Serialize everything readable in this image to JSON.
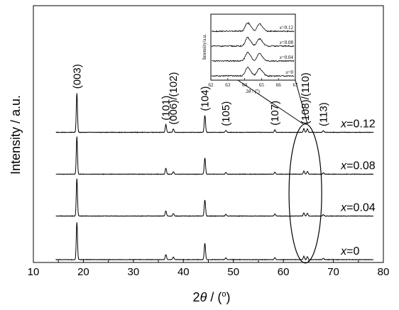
{
  "chart_data": [
    {
      "type": "line",
      "xlabel_prefix": "2",
      "xlabel_symbol": "θ",
      "xlabel_suffix": " / (",
      "xlabel_unit_sup": "o",
      "xlabel_close": ")",
      "ylabel": "Intensity / a.u.",
      "xlim": [
        10,
        80
      ],
      "ylim": [
        0,
        5
      ],
      "x_ticks": [
        "10",
        "20",
        "30",
        "40",
        "50",
        "60",
        "70",
        "80"
      ],
      "x_tick_values": [
        10,
        20,
        30,
        40,
        50,
        60,
        70,
        80
      ],
      "grid": false,
      "y_ticks": false,
      "series_var": "x",
      "series": [
        {
          "name_value": "=0",
          "baseline": 0.0
        },
        {
          "name_value": "=0.04",
          "baseline": 1.25
        },
        {
          "name_value": "=0.08",
          "baseline": 2.45
        },
        {
          "name_value": "=0.12",
          "baseline": 3.65
        }
      ],
      "peaks": [
        {
          "x": 18.7,
          "heights": [
            2.2,
            2.2,
            2.2,
            2.3
          ]
        },
        {
          "x": 36.5,
          "heights": [
            0.3,
            0.3,
            0.35,
            0.45
          ]
        },
        {
          "x": 38.0,
          "heights": [
            0.15,
            0.15,
            0.15,
            0.2
          ]
        },
        {
          "x": 44.3,
          "heights": [
            0.95,
            0.95,
            0.95,
            1.0
          ]
        },
        {
          "x": 48.5,
          "heights": [
            0.1,
            0.1,
            0.1,
            0.12
          ]
        },
        {
          "x": 58.3,
          "heights": [
            0.12,
            0.12,
            0.12,
            0.15
          ]
        },
        {
          "x": 64.1,
          "heights": [
            0.2,
            0.18,
            0.18,
            0.22
          ]
        },
        {
          "x": 64.8,
          "heights": [
            0.18,
            0.17,
            0.17,
            0.2
          ]
        },
        {
          "x": 68.0,
          "heights": [
            0.08,
            0.08,
            0.08,
            0.1
          ]
        }
      ],
      "peak_labels": [
        {
          "text": "(003)",
          "x": 18.7
        },
        {
          "text": "(101)",
          "x": 36.5
        },
        {
          "text": "(006)/(102)",
          "x": 38.0
        },
        {
          "text": "(104)",
          "x": 44.3
        },
        {
          "text": "(105)",
          "x": 48.5
        },
        {
          "text": "(107)",
          "x": 58.3
        },
        {
          "text": "(108)/(110)",
          "x": 64.4
        },
        {
          "text": "(113)",
          "x": 68.0
        }
      ],
      "highlight_ellipse_center": [
        64.4,
        2.1
      ]
    },
    {
      "type": "line",
      "role": "inset",
      "xlabel_prefix": "2",
      "xlabel_symbol": "θ",
      "xlabel_suffix": " / (",
      "xlabel_unit_sup": "o",
      "xlabel_close": ")",
      "ylabel": "Intensity/a.u.",
      "xlim": [
        62,
        67
      ],
      "x_ticks": [
        "62",
        "63",
        "64",
        "65",
        "66",
        "67"
      ],
      "x_tick_values": [
        62,
        63,
        64,
        65,
        66,
        67
      ],
      "series_var": "x",
      "series": [
        {
          "name_value": "=0"
        },
        {
          "name_value": "=0.04"
        },
        {
          "name_value": "=0.08"
        },
        {
          "name_value": "=0.12"
        }
      ],
      "peaks": [
        {
          "x": 64.15,
          "height": 0.75
        },
        {
          "x": 64.85,
          "height": 0.65
        }
      ]
    }
  ]
}
